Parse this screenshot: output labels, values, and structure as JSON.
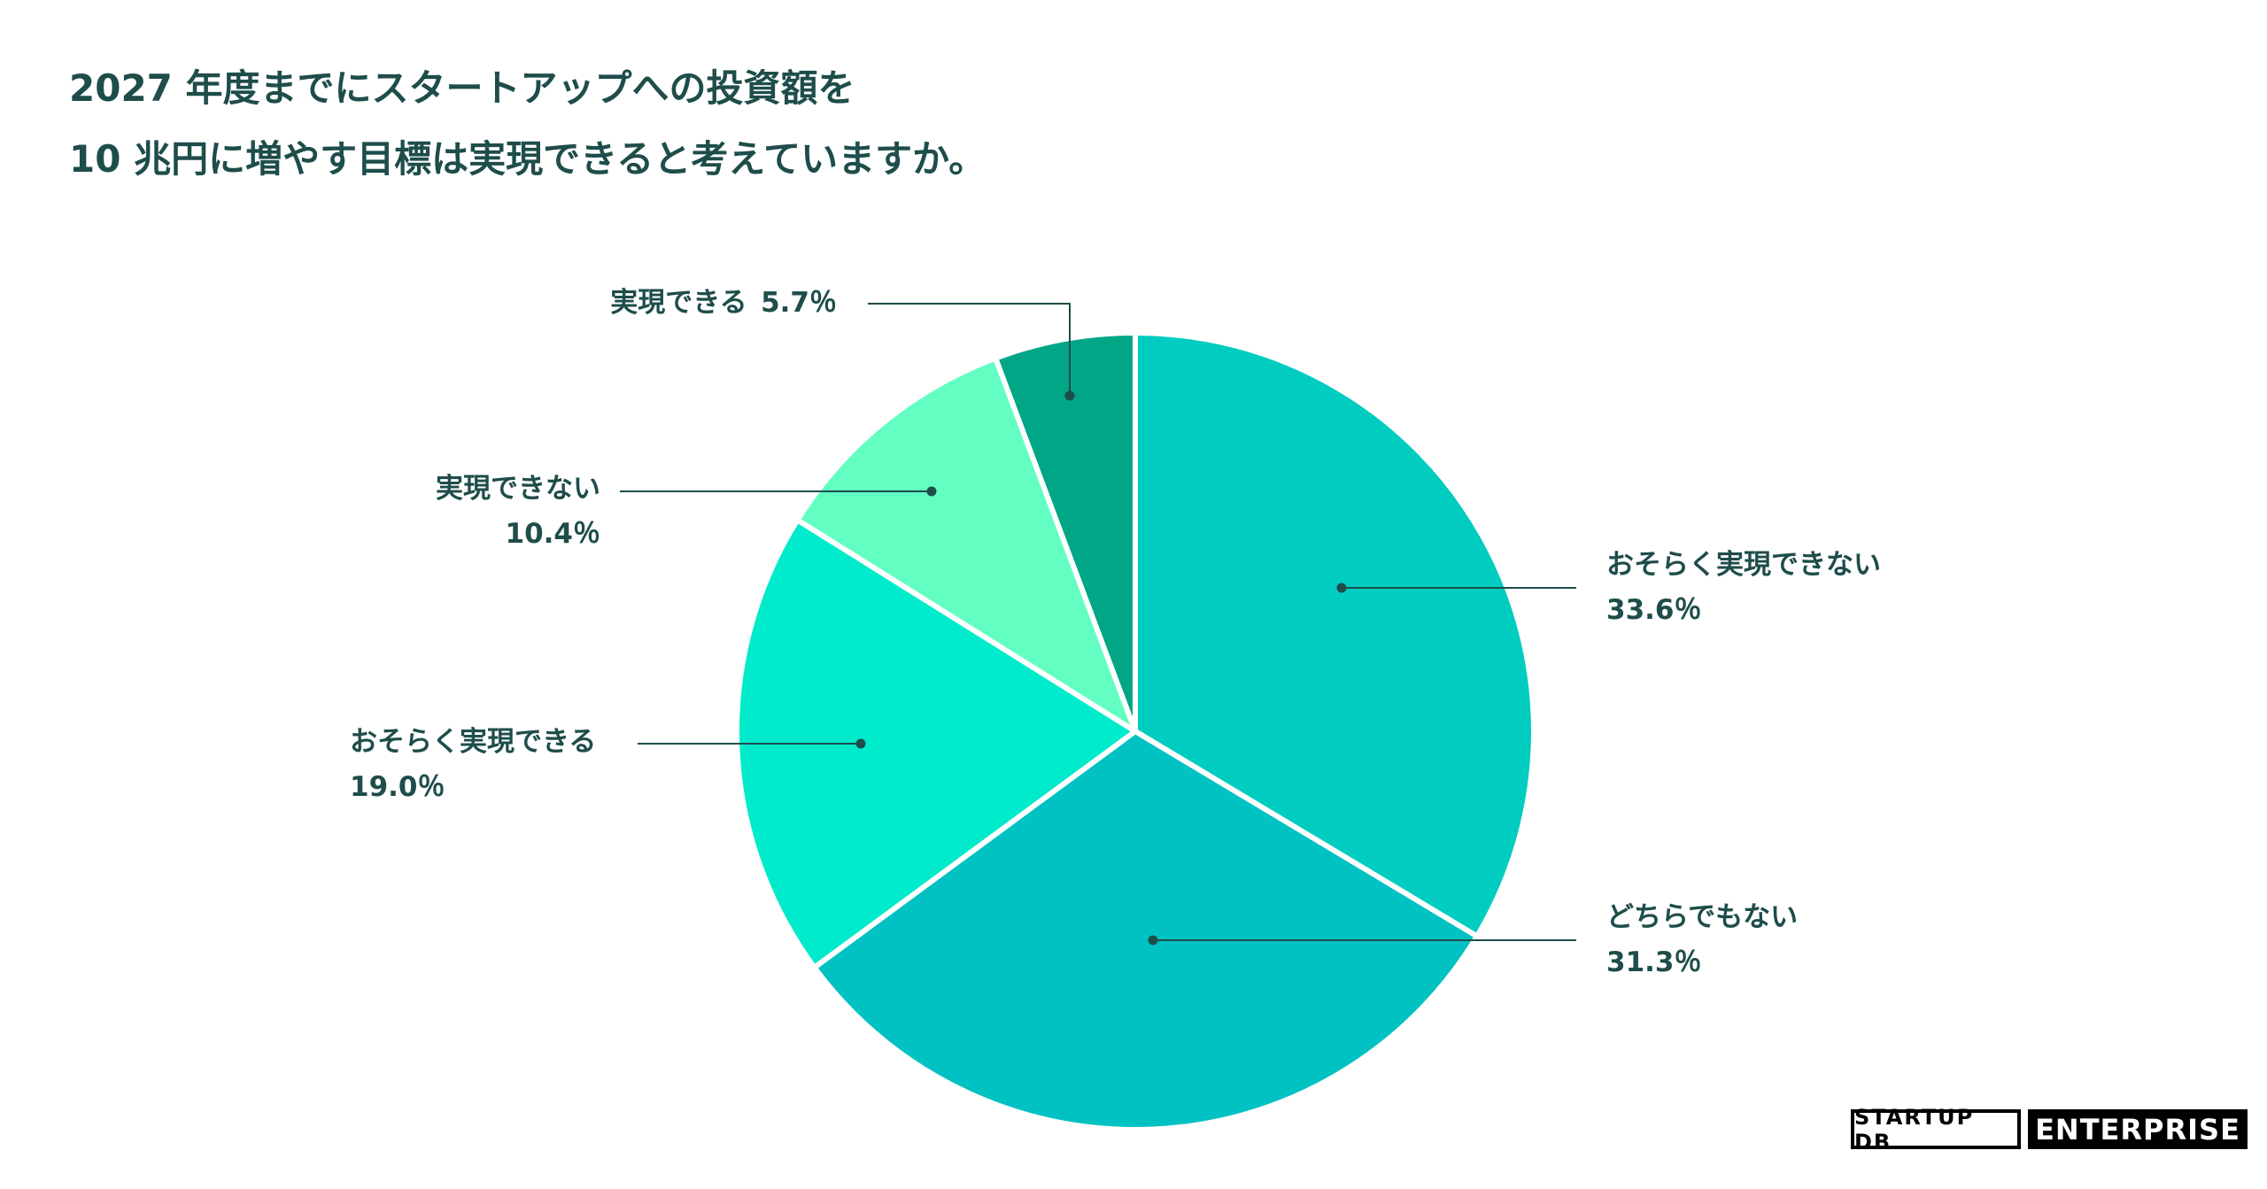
{
  "header": {
    "title_line1": "2027 年度までにスタートアップへの投資額を",
    "title_line2": "10 兆円に増やす目標は実現できると考えていますか。"
  },
  "chart_data": {
    "type": "pie",
    "title": "2027 年度までにスタートアップへの投資額を 10 兆円に増やす目標は実現できると考えていますか。",
    "unit": "%",
    "slices": [
      {
        "label": "おそらく実現できない",
        "value": 33.6,
        "value_text": "33.6％",
        "color": "#00cdbf"
      },
      {
        "label": "どちらでもない",
        "value": 31.3,
        "value_text": "31.3％",
        "color": "#00c2c2"
      },
      {
        "label": "おそらく実現できる",
        "value": 19.0,
        "value_text": "19.0％",
        "color": "#00ebcb"
      },
      {
        "label": "実現できない",
        "value": 10.4,
        "value_text": "10.4％",
        "color": "#63ffc2"
      },
      {
        "label": "実現できる",
        "value": 5.7,
        "value_text": "5.7％",
        "color": "#00a685"
      }
    ]
  },
  "logos": {
    "startup_db": "STARTUP DB",
    "enterprise": "ENTERPRISE"
  },
  "colors": {
    "text": "#1e4d4a",
    "leader_line": "#1e4d4a"
  }
}
